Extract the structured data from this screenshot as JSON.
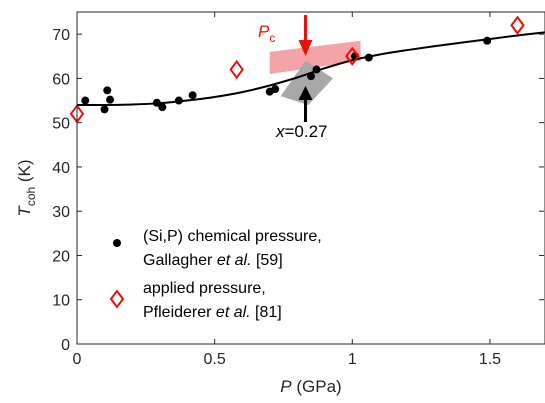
{
  "chart_data": {
    "type": "scatter",
    "xlabel_var": "P",
    "xlabel_unit": " (GPa)",
    "ylabel_var": "T",
    "ylabel_sub": "coh",
    "ylabel_unit": " (K)",
    "xlim": [
      0,
      1.7
    ],
    "ylim": [
      0,
      75
    ],
    "xticks": [
      0,
      0.5,
      1,
      1.5
    ],
    "xtick_labels": [
      "0",
      "0.5",
      "1",
      "1.5"
    ],
    "yticks": [
      0,
      10,
      20,
      30,
      40,
      50,
      60,
      70
    ],
    "ytick_labels": [
      "0",
      "10",
      "20",
      "30",
      "40",
      "50",
      "60",
      "70"
    ],
    "grid": false,
    "legend_placement": "lower-left",
    "series": [
      {
        "line1": "(Si,P) chemical pressure,",
        "line2_pre": "Gallagher ",
        "line2_em": "et al.",
        "line2_post": " [59]",
        "marker": "filled-circle",
        "color": "#000000",
        "points": [
          [
            0.03,
            55.0
          ],
          [
            0.1,
            53.0
          ],
          [
            0.11,
            57.3
          ],
          [
            0.12,
            55.2
          ],
          [
            0.29,
            54.5
          ],
          [
            0.31,
            53.5
          ],
          [
            0.37,
            55.0
          ],
          [
            0.42,
            56.2
          ],
          [
            0.7,
            57.0
          ],
          [
            0.72,
            57.6
          ],
          [
            0.85,
            60.5
          ],
          [
            0.87,
            62.0
          ],
          [
            1.01,
            65.0
          ],
          [
            1.06,
            64.7
          ],
          [
            1.49,
            68.5
          ]
        ]
      },
      {
        "line1": "applied pressure,",
        "line2_pre": "Pfleiderer ",
        "line2_em": "et al.",
        "line2_post": " [81]",
        "marker": "open-diamond",
        "color": "#e8100b",
        "points": [
          [
            0.0,
            52.0
          ],
          [
            0.58,
            62.0
          ],
          [
            1.0,
            65.0
          ],
          [
            1.6,
            72.0
          ]
        ]
      }
    ],
    "fit_curve": {
      "color": "#000000",
      "x": [
        0,
        0.1,
        0.2,
        0.3,
        0.4,
        0.5,
        0.6,
        0.7,
        0.8,
        0.9,
        1.0,
        1.1,
        1.2,
        1.3,
        1.4,
        1.5,
        1.6,
        1.7
      ],
      "y": [
        54.0,
        54.0,
        54.1,
        54.4,
        55.0,
        55.8,
        56.9,
        58.4,
        60.2,
        62.3,
        64.1,
        65.4,
        66.4,
        67.3,
        68.1,
        68.9,
        69.7,
        70.4
      ]
    },
    "bands": [
      {
        "color": "#f4a3a6",
        "polygon": [
          [
            0.7,
            61.0
          ],
          [
            1.03,
            64.0
          ],
          [
            1.03,
            68.5
          ],
          [
            0.7,
            66.0
          ]
        ]
      },
      {
        "color": "#a8a8a8",
        "polygon": [
          [
            0.74,
            56.0
          ],
          [
            0.84,
            54.0
          ],
          [
            0.93,
            60.0
          ],
          [
            0.83,
            64.0
          ]
        ]
      }
    ],
    "annotations": {
      "pc": {
        "var": "P",
        "sub": "c",
        "color": "#e8100b"
      },
      "pc_arrow": {
        "x": 0.83,
        "color": "#e8100b"
      },
      "x_label": {
        "var": "x",
        "rest": "=0.27",
        "color": "#000000"
      },
      "x_arrow": {
        "x": 0.83,
        "color": "#000000"
      }
    }
  }
}
